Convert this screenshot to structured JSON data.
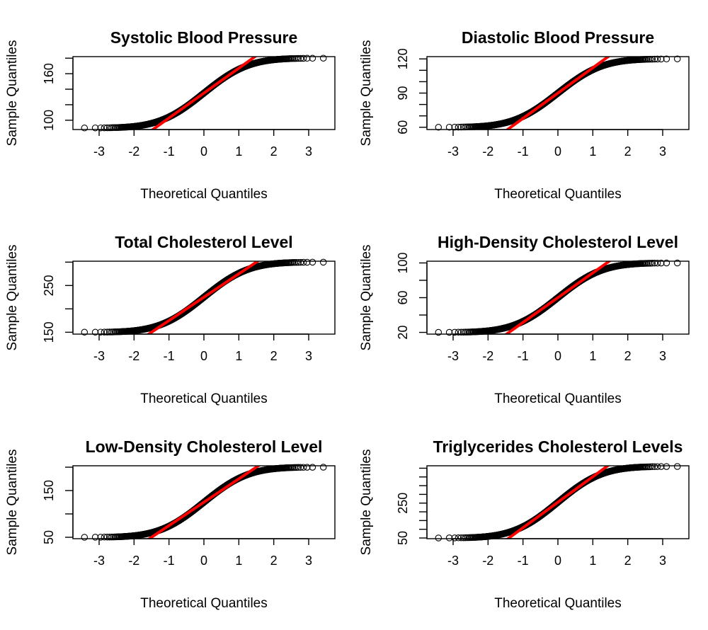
{
  "chart_data": [
    {
      "type": "scatter",
      "title": "Systolic Blood Pressure",
      "xlabel": "Theoretical Quantiles",
      "ylabel": "Sample Quantiles",
      "xlim": [
        -3.75,
        3.75
      ],
      "ylim": [
        88,
        182
      ],
      "x_ticks": [
        -3,
        -2,
        -1,
        0,
        1,
        2,
        3
      ],
      "x_tick_labels": [
        "-3",
        "-2",
        "-1",
        "0",
        "1",
        "2",
        "3"
      ],
      "y_ticks": [
        100,
        120,
        140,
        160,
        180
      ],
      "y_tick_labels": [
        "100",
        "",
        "",
        "160",
        ""
      ],
      "distribution": {
        "min": 90,
        "max": 180
      },
      "reference_line": {
        "color": "#ff0000",
        "points": [
          [
            -1.4,
            90
          ],
          [
            1.4,
            180
          ]
        ]
      },
      "colors": {
        "points": "#000000",
        "line": "#ff0000"
      }
    },
    {
      "type": "scatter",
      "title": "Diastolic Blood Pressure",
      "xlabel": "Theoretical Quantiles",
      "ylabel": "Sample Quantiles",
      "xlim": [
        -3.75,
        3.75
      ],
      "ylim": [
        58,
        122
      ],
      "x_ticks": [
        -3,
        -2,
        -1,
        0,
        1,
        2,
        3
      ],
      "x_tick_labels": [
        "-3",
        "-2",
        "-1",
        "0",
        "1",
        "2",
        "3"
      ],
      "y_ticks": [
        60,
        70,
        80,
        90,
        100,
        110,
        120
      ],
      "y_tick_labels": [
        "60",
        "",
        "",
        "90",
        "",
        "",
        "120"
      ],
      "distribution": {
        "min": 60,
        "max": 120
      },
      "reference_line": {
        "color": "#ff0000",
        "points": [
          [
            -1.35,
            60
          ],
          [
            1.35,
            120
          ]
        ]
      },
      "colors": {
        "points": "#000000",
        "line": "#ff0000"
      }
    },
    {
      "type": "scatter",
      "title": "Total Cholesterol Level",
      "xlabel": "Theoretical Quantiles",
      "ylabel": "Sample Quantiles",
      "xlim": [
        -3.75,
        3.75
      ],
      "ylim": [
        146,
        302
      ],
      "x_ticks": [
        -3,
        -2,
        -1,
        0,
        1,
        2,
        3
      ],
      "x_tick_labels": [
        "-3",
        "-2",
        "-1",
        "0",
        "1",
        "2",
        "3"
      ],
      "y_ticks": [
        150,
        200,
        250,
        300
      ],
      "y_tick_labels": [
        "150",
        "",
        "250",
        ""
      ],
      "distribution": {
        "min": 150,
        "max": 300
      },
      "reference_line": {
        "color": "#ff0000",
        "points": [
          [
            -1.5,
            150
          ],
          [
            1.5,
            300
          ]
        ]
      },
      "colors": {
        "points": "#000000",
        "line": "#ff0000"
      }
    },
    {
      "type": "scatter",
      "title": "High-Density Cholesterol Level",
      "xlabel": "Theoretical Quantiles",
      "ylabel": "Sample Quantiles",
      "xlim": [
        -3.75,
        3.75
      ],
      "ylim": [
        18,
        102
      ],
      "x_ticks": [
        -3,
        -2,
        -1,
        0,
        1,
        2,
        3
      ],
      "x_tick_labels": [
        "-3",
        "-2",
        "-1",
        "0",
        "1",
        "2",
        "3"
      ],
      "y_ticks": [
        20,
        40,
        60,
        80,
        100
      ],
      "y_tick_labels": [
        "20",
        "",
        "60",
        "",
        "100"
      ],
      "distribution": {
        "min": 20,
        "max": 100
      },
      "reference_line": {
        "color": "#ff0000",
        "points": [
          [
            -1.4,
            20
          ],
          [
            1.4,
            100
          ]
        ]
      },
      "colors": {
        "points": "#000000",
        "line": "#ff0000"
      }
    },
    {
      "type": "scatter",
      "title": "Low-Density Cholesterol Level",
      "xlabel": "Theoretical Quantiles",
      "ylabel": "Sample Quantiles",
      "xlim": [
        -3.75,
        3.75
      ],
      "ylim": [
        47,
        203
      ],
      "x_ticks": [
        -3,
        -2,
        -1,
        0,
        1,
        2,
        3
      ],
      "x_tick_labels": [
        "-3",
        "-2",
        "-1",
        "0",
        "1",
        "2",
        "3"
      ],
      "y_ticks": [
        50,
        100,
        150,
        200
      ],
      "y_tick_labels": [
        "50",
        "",
        "150",
        ""
      ],
      "distribution": {
        "min": 50,
        "max": 200
      },
      "reference_line": {
        "color": "#ff0000",
        "points": [
          [
            -1.5,
            50
          ],
          [
            1.5,
            200
          ]
        ]
      },
      "colors": {
        "points": "#000000",
        "line": "#ff0000"
      }
    },
    {
      "type": "scatter",
      "title": "Triglycerides Cholesterol Levels",
      "xlabel": "Theoretical Quantiles",
      "ylabel": "Sample Quantiles",
      "xlim": [
        -3.75,
        3.75
      ],
      "ylim": [
        46,
        464
      ],
      "x_ticks": [
        -3,
        -2,
        -1,
        0,
        1,
        2,
        3
      ],
      "x_tick_labels": [
        "-3",
        "-2",
        "-1",
        "0",
        "1",
        "2",
        "3"
      ],
      "y_ticks": [
        50,
        100,
        150,
        200,
        250,
        300,
        350,
        400,
        450
      ],
      "y_tick_labels": [
        "50",
        "",
        "",
        "",
        "250",
        "",
        "",
        "",
        ""
      ],
      "distribution": {
        "min": 50,
        "max": 460
      },
      "reference_line": {
        "color": "#ff0000",
        "points": [
          [
            -1.4,
            50
          ],
          [
            1.4,
            460
          ]
        ]
      },
      "colors": {
        "points": "#000000",
        "line": "#ff0000"
      }
    }
  ]
}
